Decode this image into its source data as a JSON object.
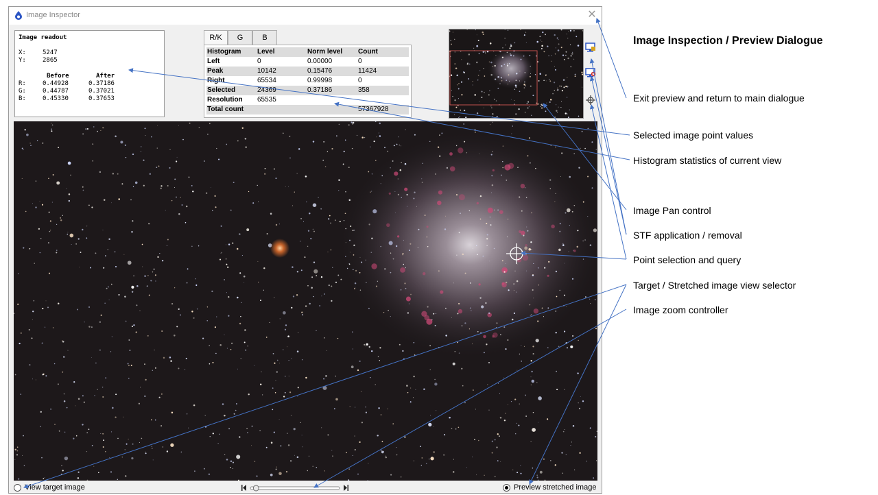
{
  "window": {
    "title": "Image Inspector",
    "close_glyph": "✕"
  },
  "readout": {
    "heading": "Image readout",
    "x_label": "X:",
    "x_value": "5247",
    "y_label": "Y:",
    "y_value": "2865",
    "before_label": "Before",
    "after_label": "After",
    "rows": [
      {
        "ch": "R:",
        "before": "0.44928",
        "after": "0.37186"
      },
      {
        "ch": "G:",
        "before": "0.44787",
        "after": "0.37021"
      },
      {
        "ch": "B:",
        "before": "0.45330",
        "after": "0.37653"
      }
    ]
  },
  "tabs": [
    "R/K",
    "G",
    "B"
  ],
  "histogram": {
    "headers": [
      "Histogram",
      "Level",
      "Norm level",
      "Count"
    ],
    "rows": [
      {
        "label": "Left",
        "level": "0",
        "norm": "0.00000",
        "count": "0"
      },
      {
        "label": "Peak",
        "level": "10142",
        "norm": "0.15476",
        "count": "11424"
      },
      {
        "label": "Right",
        "level": "65534",
        "norm": "0.99998",
        "count": "0"
      },
      {
        "label": "Selected",
        "level": "24369",
        "norm": "0.37186",
        "count": "358"
      },
      {
        "label": "Resolution",
        "level": "65535",
        "norm": "",
        "count": ""
      },
      {
        "label": "Total count",
        "level": "",
        "norm": "",
        "count": "57367928"
      }
    ]
  },
  "side_icons": [
    "stf-apply-icon",
    "stf-remove-icon",
    "crosshair-icon"
  ],
  "bottom": {
    "view_target_label": "View target image",
    "preview_stretched_label": "Preview stretched image",
    "selected": "preview_stretched"
  },
  "zoom": {
    "level": 0.05
  },
  "annotations": {
    "title": "Image Inspection / Preview Dialogue",
    "items": [
      "Exit preview and return to main dialogue",
      "Selected image point values",
      "Histogram statistics of current view",
      "Image Pan control",
      "STF application / removal",
      "Point selection and query",
      "Target / Stretched image view selector",
      "Image zoom controller"
    ]
  },
  "colors": {
    "annotation_line": "#4472c4",
    "selection_box": "#c0504d",
    "nebula_pink": "#d04a78"
  }
}
